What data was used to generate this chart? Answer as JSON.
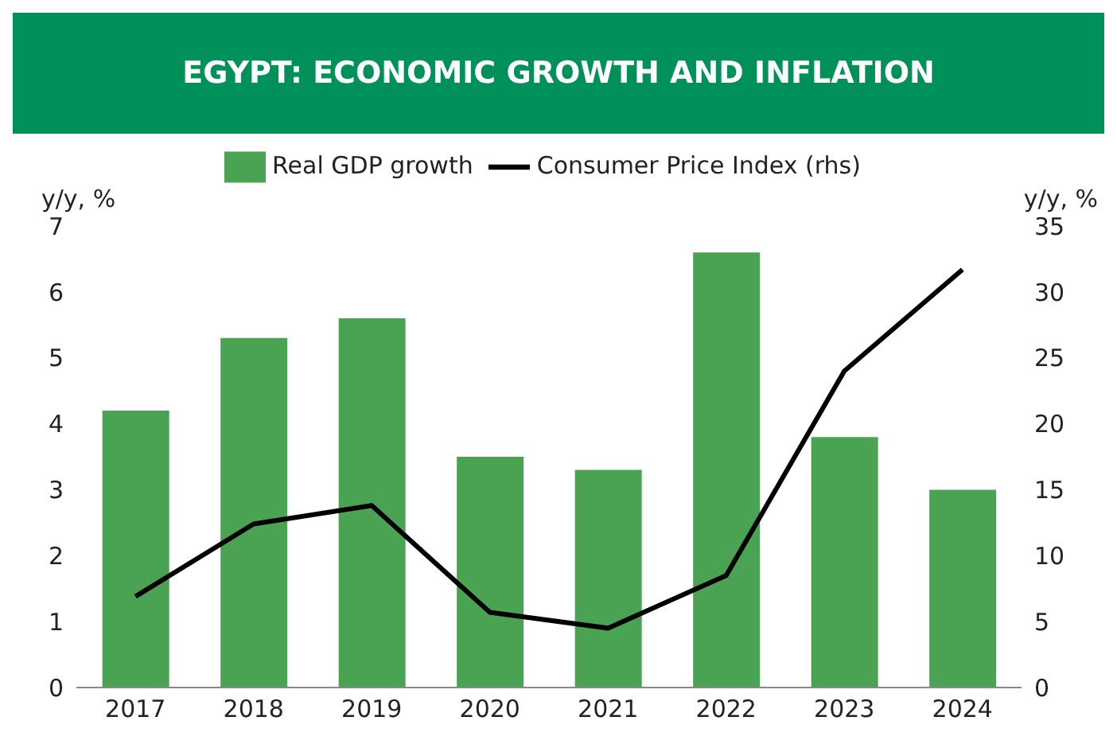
{
  "chart_data": {
    "type": "bar",
    "title": "EGYPT: ECONOMIC GROWTH AND INFLATION",
    "categories": [
      "2017",
      "2018",
      "2019",
      "2020",
      "2021",
      "2022",
      "2023",
      "2024"
    ],
    "series": [
      {
        "name": "Real GDP growth",
        "color": "#4aa353",
        "values": [
          4.2,
          5.3,
          5.6,
          3.5,
          3.3,
          6.6,
          3.8,
          3.0
        ]
      },
      {
        "name": "Consumer Price Index (rhs)",
        "type": "line",
        "axis": "y2",
        "color": "#000000",
        "values": [
          6.9,
          12.4,
          13.8,
          5.7,
          4.5,
          8.5,
          24.0,
          31.7
        ]
      }
    ],
    "ylabel": "y/y, %",
    "y2label": "y/y, %",
    "ylim": [
      0,
      7
    ],
    "yticks": [
      0,
      1,
      2,
      3,
      4,
      5,
      6,
      7
    ],
    "y2lim": [
      0,
      35
    ],
    "y2ticks": [
      0,
      5,
      10,
      15,
      20,
      25,
      30,
      35
    ],
    "legend": "top",
    "marker": "none",
    "line_style": "solid"
  }
}
